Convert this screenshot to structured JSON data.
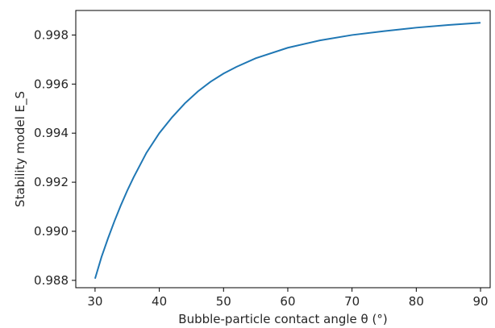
{
  "chart_data": {
    "type": "line",
    "title": "",
    "xlabel": "Bubble-particle contact angle θ (°)",
    "ylabel": "Stability model E_S",
    "xlim": [
      27,
      91.5
    ],
    "ylim": [
      0.9877,
      0.999
    ],
    "x_ticks": [
      30,
      40,
      50,
      60,
      70,
      80,
      90
    ],
    "x_tick_labels": [
      "30",
      "40",
      "50",
      "60",
      "70",
      "80",
      "90"
    ],
    "y_ticks": [
      0.988,
      0.99,
      0.992,
      0.994,
      0.996,
      0.998
    ],
    "y_tick_labels": [
      "0.988",
      "0.990",
      "0.992",
      "0.994",
      "0.996",
      "0.998"
    ],
    "grid": false,
    "legend": "none",
    "line_color": "#1f77b4",
    "series": [
      {
        "x": [
          30,
          31,
          32,
          33,
          34,
          35,
          36,
          38,
          40,
          42,
          44,
          46,
          48,
          50,
          52,
          55,
          60,
          65,
          70,
          75,
          80,
          85,
          90
        ],
        "y": [
          0.98807,
          0.98895,
          0.9897,
          0.9904,
          0.99105,
          0.99165,
          0.9922,
          0.9932,
          0.994,
          0.99465,
          0.99522,
          0.9957,
          0.9961,
          0.99643,
          0.9967,
          0.99705,
          0.99748,
          0.99778,
          0.998,
          0.99816,
          0.9983,
          0.99841,
          0.9985
        ]
      }
    ]
  }
}
